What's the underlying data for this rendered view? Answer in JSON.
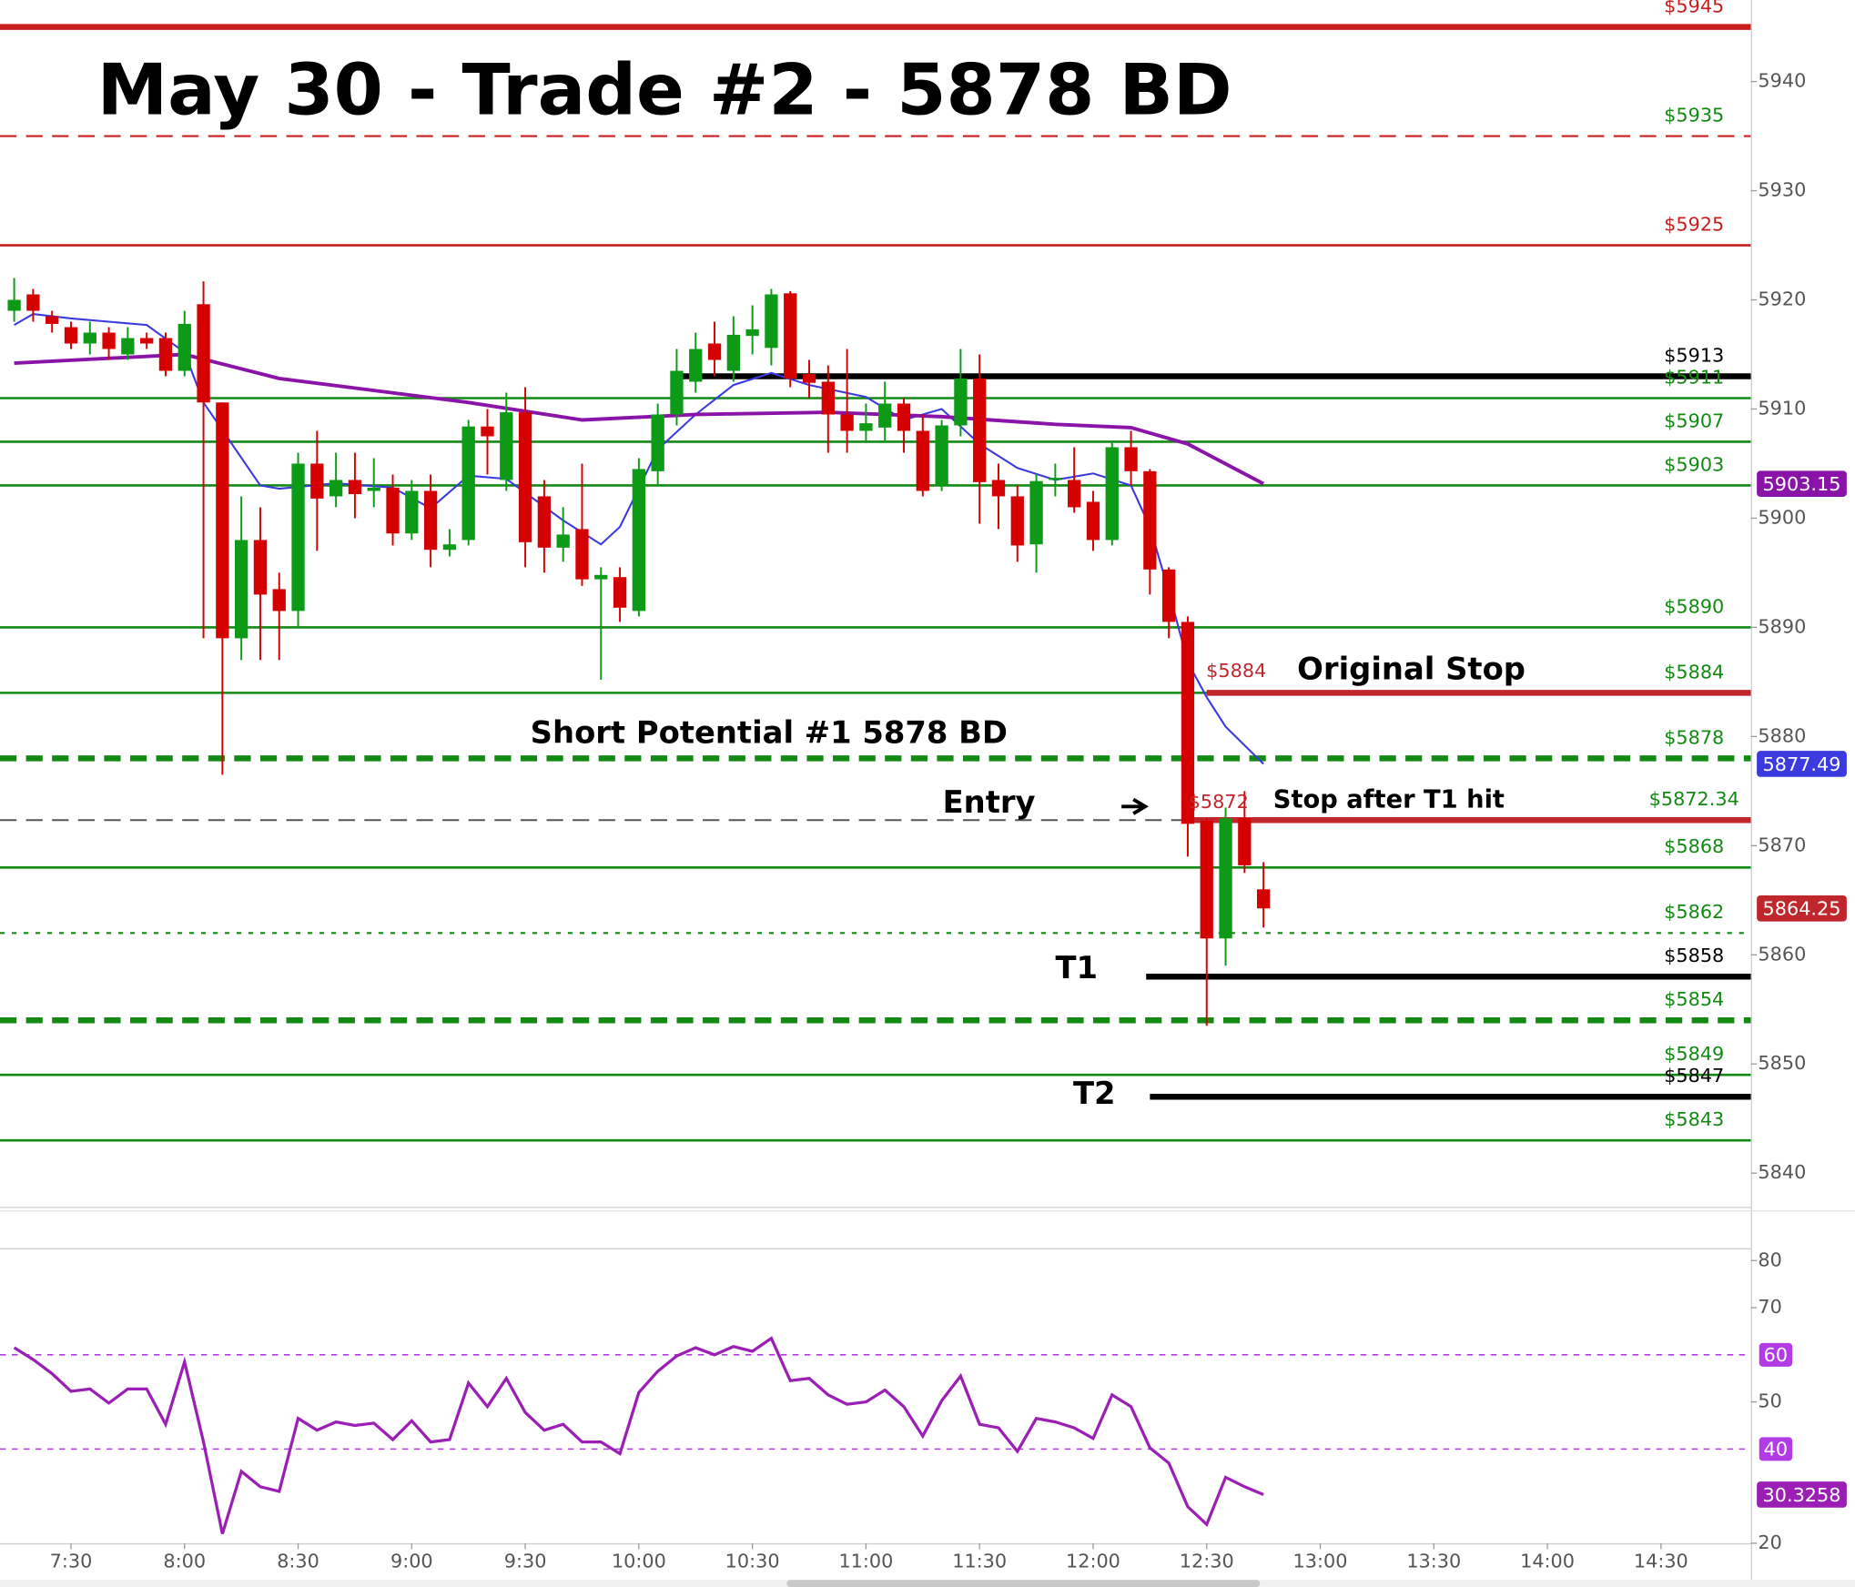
{
  "chart_data": {
    "type": "candlestick",
    "title": "May 30 - Trade #2 - 5878 BD",
    "x": [
      435,
      440,
      445,
      450,
      455,
      460,
      465,
      470,
      475,
      480,
      485,
      490,
      495,
      500,
      505,
      510,
      515,
      520,
      525,
      530,
      535,
      540,
      545,
      550,
      555,
      560,
      565,
      570,
      575,
      580,
      585,
      590,
      595,
      600,
      605,
      610,
      615,
      620,
      625,
      630,
      635,
      640,
      645,
      650,
      655,
      660,
      665,
      670,
      675,
      680,
      685,
      690,
      695,
      700,
      705,
      710,
      715,
      720,
      725,
      730,
      735,
      740,
      745,
      750,
      755,
      760,
      765
    ],
    "open": [
      5919,
      5920.5,
      5918.5,
      5917.5,
      5916,
      5917,
      5915,
      5916.5,
      5916.5,
      5913.5,
      5919.6,
      5910.6,
      5889,
      5898,
      5893.5,
      5891.5,
      5905,
      5902,
      5903.5,
      5902.5,
      5902.8,
      5898.6,
      5902.5,
      5897.1,
      5898,
      5908.4,
      5903.5,
      5909.7,
      5902,
      5897.3,
      5899,
      5894.4,
      5894.6,
      5891.5,
      5904.3,
      5909.5,
      5912.5,
      5916,
      5913.5,
      5916.7,
      5915.6,
      5920.6,
      5913.2,
      5912.5,
      5909.5,
      5908,
      5908.3,
      5910.5,
      5908,
      5903,
      5908.5,
      5912.8,
      5903.5,
      5902,
      5897.6,
      5903.5,
      5903.5,
      5901.5,
      5898,
      5906.5,
      5904.3,
      5895.3,
      5890.5,
      5872.3,
      5861.5,
      5872.5,
      5866
    ],
    "high": [
      5922,
      5921,
      5919,
      5918,
      5918,
      5917.5,
      5917.5,
      5917,
      5917,
      5919,
      5921.7,
      5910.6,
      5902,
      5901,
      5895,
      5906,
      5908,
      5906,
      5906,
      5905.5,
      5904,
      5903.5,
      5904,
      5899,
      5909,
      5910,
      5911.5,
      5912,
      5903.5,
      5901,
      5905,
      5895.5,
      5895.5,
      5905.5,
      5910.5,
      5915.5,
      5917,
      5918,
      5918.5,
      5919.5,
      5921,
      5920.8,
      5914.5,
      5914,
      5915.5,
      5910.5,
      5912.5,
      5911,
      5909.5,
      5909,
      5915.5,
      5915,
      5905,
      5903,
      5904,
      5905,
      5906.5,
      5902.5,
      5907,
      5908,
      5904.5,
      5895.5,
      5891,
      5872.5,
      5873.5,
      5875,
      5868.5
    ],
    "low": [
      5918,
      5918,
      5917,
      5915.5,
      5915,
      5914.5,
      5914.5,
      5915.5,
      5913,
      5913,
      5889,
      5876.5,
      5887,
      5887,
      5887,
      5890,
      5897,
      5901,
      5900,
      5901,
      5897.5,
      5898,
      5895.5,
      5896.5,
      5897.5,
      5904,
      5902.5,
      5895.5,
      5895,
      5896,
      5893.8,
      5885.2,
      5890.5,
      5891,
      5903,
      5908.5,
      5911.5,
      5913,
      5912.5,
      5915,
      5914,
      5912,
      5911,
      5906,
      5906,
      5907,
      5907,
      5906,
      5902,
      5902.5,
      5907.5,
      5899.5,
      5899,
      5896,
      5895,
      5902,
      5900.5,
      5897,
      5897.5,
      5903,
      5893,
      5889,
      5869,
      5853.5,
      5859,
      5867.5,
      5862.5
    ],
    "close": [
      5920,
      5919,
      5917.8,
      5916,
      5917,
      5915.5,
      5916.5,
      5916,
      5913.5,
      5917.8,
      5910.6,
      5889,
      5898,
      5893,
      5891.5,
      5905,
      5901.8,
      5903.5,
      5902.2,
      5902.8,
      5898.6,
      5902.5,
      5897.1,
      5897.6,
      5908.4,
      5907.5,
      5909.7,
      5897.8,
      5897.3,
      5898.5,
      5894.4,
      5894.8,
      5891.8,
      5904.5,
      5909.5,
      5913.5,
      5915.5,
      5914.5,
      5916.8,
      5917.3,
      5920.5,
      5912.8,
      5912.4,
      5909.5,
      5908,
      5908.7,
      5910.5,
      5908,
      5902.5,
      5908.5,
      5912.8,
      5903.3,
      5902,
      5897.5,
      5903.4,
      5903.7,
      5901,
      5898,
      5906.5,
      5904.3,
      5895.3,
      5890.5,
      5872,
      5861.5,
      5872.5,
      5868.2,
      5864.25
    ],
    "up_color": "#0c9a17",
    "down_color": "#d50000",
    "xlim": [
      431.25,
      893.75
    ],
    "xticks": [
      {
        "value": 450,
        "label": "7:30"
      },
      {
        "value": 480,
        "label": "8:00"
      },
      {
        "value": 510,
        "label": "8:30"
      },
      {
        "value": 540,
        "label": "9:00"
      },
      {
        "value": 570,
        "label": "9:30"
      },
      {
        "value": 600,
        "label": "10:00"
      },
      {
        "value": 630,
        "label": "10:30"
      },
      {
        "value": 660,
        "label": "11:00"
      },
      {
        "value": 690,
        "label": "11:30"
      },
      {
        "value": 720,
        "label": "12:00"
      },
      {
        "value": 750,
        "label": "12:30"
      },
      {
        "value": 780,
        "label": "13:00"
      },
      {
        "value": 810,
        "label": "13:30"
      },
      {
        "value": 840,
        "label": "14:00"
      },
      {
        "value": 870,
        "label": "14:30"
      }
    ],
    "ylim": [
      5836.97,
      5947.47
    ],
    "yticks": [
      5840,
      5850,
      5860,
      5870,
      5880,
      5890,
      5900,
      5910,
      5920,
      5930,
      5940
    ],
    "ma": [
      {
        "color": "#3a3adf",
        "x": [
          435,
          440,
          450,
          470,
          480,
          485,
          500,
          505,
          520,
          535,
          545,
          555,
          565,
          580,
          590,
          595,
          605,
          615,
          625,
          635,
          645,
          660,
          670,
          680,
          690,
          700,
          710,
          720,
          730,
          735,
          740,
          745,
          750,
          755,
          765
        ],
        "values": [
          5917.7,
          5918.7,
          5918.3,
          5917.7,
          5915.2,
          5910.6,
          5903,
          5902.7,
          5903.2,
          5902.8,
          5900.9,
          5903.9,
          5903.6,
          5899.8,
          5897.6,
          5899.2,
          5906.3,
          5909.5,
          5912.2,
          5913.3,
          5912.2,
          5911.1,
          5909,
          5910,
          5906.8,
          5904.6,
          5903.5,
          5904.1,
          5903,
          5899.2,
          5893.3,
          5886.8,
          5883.6,
          5880.9,
          5877.49
        ]
      },
      {
        "color": "#8a14a8",
        "x": [
          435,
          480,
          505,
          555,
          585,
          615,
          650,
          680,
          710,
          730,
          745,
          765
        ],
        "values": [
          5914.2,
          5915,
          5912.8,
          5910.6,
          5909,
          5909.5,
          5909.7,
          5909.3,
          5908.6,
          5908.3,
          5906.8,
          5903.15
        ]
      }
    ],
    "levels": [
      {
        "value": 5945,
        "label": "$5945",
        "color": "#c81e1e",
        "style": "solid",
        "thick": true
      },
      {
        "value": 5935,
        "label": "$5935",
        "color": "#c81e1e",
        "style": "dashed",
        "thick": false
      },
      {
        "value": 5925,
        "label": "$5925",
        "color": "#c81e1e",
        "style": "solid",
        "thick": false
      },
      {
        "value": 5913,
        "label": "$5913",
        "color": "#000000",
        "style": "solid",
        "thick": true,
        "from": 610
      },
      {
        "value": 5911,
        "label": "$5911",
        "color": "#138a13",
        "style": "solid",
        "thick": false
      },
      {
        "value": 5907,
        "label": "$5907",
        "color": "#138a13",
        "style": "solid",
        "thick": false
      },
      {
        "value": 5903,
        "label": "$5903",
        "color": "#138a13",
        "style": "solid",
        "thick": false
      },
      {
        "value": 5890,
        "label": "$5890",
        "color": "#138a13",
        "style": "solid",
        "thick": false
      },
      {
        "value": 5884,
        "label": "$5884",
        "color": "#138a13",
        "style": "solid",
        "thick": false
      },
      {
        "value": 5884,
        "color": "#c0272d",
        "style": "solid",
        "thick": true,
        "from": 750
      },
      {
        "value": 5878,
        "label": "$5878",
        "color": "#138a13",
        "style": "dashed",
        "thick": true
      },
      {
        "value": 5872.34,
        "label": "$5872.34",
        "color": "#555555",
        "style": "dashed",
        "thick": false
      },
      {
        "value": 5872.34,
        "color": "#c0272d",
        "style": "solid",
        "thick": true,
        "from": 744
      },
      {
        "value": 5868,
        "label": "$5868",
        "color": "#138a13",
        "style": "solid",
        "thick": false
      },
      {
        "value": 5862,
        "label": "$5862",
        "color": "#138a13",
        "style": "dotted",
        "thick": false
      },
      {
        "value": 5858,
        "label": "$5858",
        "color": "#000000",
        "style": "solid",
        "thick": true,
        "from": 734
      },
      {
        "value": 5854,
        "label": "$5854",
        "color": "#138a13",
        "style": "dashed",
        "thick": true
      },
      {
        "value": 5849,
        "label": "$5849",
        "color": "#138a13",
        "style": "solid",
        "thick": false
      },
      {
        "value": 5847,
        "label": "$5847",
        "color": "#000000",
        "style": "solid",
        "thick": true,
        "from": 735
      },
      {
        "value": 5843,
        "label": "$5843",
        "color": "#138a13",
        "style": "solid",
        "thick": false
      }
    ],
    "markers": [
      {
        "value": 5884,
        "label": "$5884"
      },
      {
        "value": 5872,
        "label": "$5872"
      }
    ],
    "annotations": [
      "Original Stop",
      "Short Potential #1 5878 BD",
      "Entry",
      "Stop after T1 hit",
      "T1",
      "T2"
    ],
    "rsi": {
      "type": "line",
      "color": "#9b1fb5",
      "values": [
        61.5,
        59,
        56,
        52.25,
        52.75,
        49.75,
        52.75,
        52.75,
        45.25,
        58.5,
        41.5,
        22,
        35.25,
        32,
        31,
        46.5,
        44,
        45.75,
        45,
        45.5,
        42,
        46,
        41.5,
        42,
        54,
        49,
        55,
        47.75,
        44,
        45.25,
        41.5,
        41.5,
        39,
        52,
        56.5,
        59.75,
        61.5,
        60,
        61.75,
        60.75,
        63.5,
        54.5,
        55,
        51.5,
        49.5,
        50,
        52.5,
        49,
        42.75,
        50.25,
        55.5,
        45.25,
        44.5,
        39.5,
        46.5,
        45.75,
        44.5,
        42.25,
        51.5,
        49,
        40.25,
        37,
        27.75,
        24,
        34,
        32,
        30.3258
      ],
      "ylim": [
        20,
        82.25
      ],
      "yticks": [
        20,
        50,
        70,
        80
      ],
      "levels": [
        60,
        40
      ],
      "level_color": "#b23be6"
    }
  }
}
